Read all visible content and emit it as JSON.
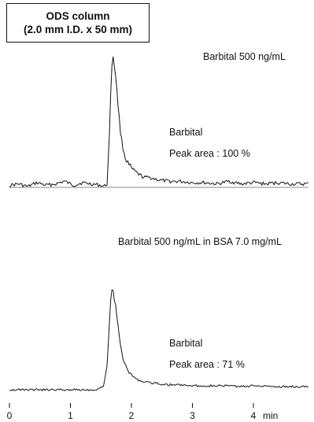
{
  "header": {
    "title_line1": "ODS column",
    "title_line2": "(2.0 mm I.D. x 50 mm)"
  },
  "panels": [
    {
      "condition": "Barbital 500 ng/mL",
      "compound": "Barbital",
      "peak_area_text": "Peak area : 100 %"
    },
    {
      "condition": "Barbital 500 ng/mL in BSA  7.0 mg/mL",
      "compound": "Barbital",
      "peak_area_text": "Peak area : 71 %"
    }
  ],
  "chart_data": [
    {
      "type": "line",
      "title": "Barbital 500 ng/mL",
      "xlabel": "min",
      "x_ticks": [
        0,
        1,
        2,
        3,
        4
      ],
      "xlim": [
        0,
        4.9
      ],
      "ylim": [
        0,
        1
      ],
      "series": [
        {
          "x": [
            0,
            0.15,
            0.3,
            0.45,
            0.6,
            0.75,
            0.9,
            1.05,
            1.2,
            1.35,
            1.5,
            1.55,
            1.6,
            1.63,
            1.66,
            1.68,
            1.7,
            1.72,
            1.74,
            1.77,
            1.8,
            1.83,
            1.86,
            1.9,
            1.95,
            2.0,
            2.1,
            2.2,
            2.3,
            2.45,
            2.6,
            2.8,
            3.0,
            3.2,
            3.4,
            3.6,
            3.8,
            4.0,
            4.2,
            4.4,
            4.6,
            4.9
          ],
          "y": [
            0.01,
            0.02,
            0.0,
            0.03,
            0.01,
            0.02,
            0.04,
            0.01,
            0.03,
            0.02,
            0.01,
            0.0,
            0.02,
            0.3,
            0.7,
            0.93,
            1.0,
            0.92,
            0.86,
            0.68,
            0.52,
            0.38,
            0.3,
            0.22,
            0.17,
            0.14,
            0.1,
            0.07,
            0.07,
            0.05,
            0.04,
            0.04,
            0.03,
            0.03,
            0.02,
            0.04,
            0.02,
            0.03,
            0.02,
            0.03,
            0.02,
            0.02
          ]
        }
      ],
      "annotations": [
        "Barbital",
        "Peak area : 100 %"
      ]
    },
    {
      "type": "line",
      "title": "Barbital 500 ng/mL in BSA  7.0 mg/mL",
      "xlabel": "min",
      "x_ticks": [
        0,
        1,
        2,
        3,
        4
      ],
      "xlim": [
        0,
        4.9
      ],
      "ylim": [
        0,
        1
      ],
      "series": [
        {
          "x": [
            0,
            0.3,
            0.6,
            0.9,
            1.2,
            1.4,
            1.5,
            1.55,
            1.6,
            1.63,
            1.66,
            1.68,
            1.7,
            1.72,
            1.74,
            1.77,
            1.8,
            1.83,
            1.86,
            1.9,
            1.95,
            2.0,
            2.1,
            2.2,
            2.3,
            2.45,
            2.6,
            2.8,
            3.0,
            3.2,
            3.4,
            3.6,
            3.8,
            4.0,
            4.2,
            4.4,
            4.6,
            4.9
          ],
          "y": [
            0.0,
            0.0,
            0.0,
            0.0,
            0.0,
            0.0,
            0.02,
            0.05,
            0.25,
            0.58,
            0.9,
            1.0,
            0.98,
            0.88,
            0.85,
            0.7,
            0.55,
            0.4,
            0.32,
            0.24,
            0.18,
            0.15,
            0.1,
            0.08,
            0.07,
            0.06,
            0.05,
            0.05,
            0.04,
            0.04,
            0.04,
            0.04,
            0.03,
            0.04,
            0.04,
            0.03,
            0.03,
            0.03
          ]
        }
      ],
      "annotations": [
        "Barbital",
        "Peak area : 71 %"
      ]
    }
  ]
}
